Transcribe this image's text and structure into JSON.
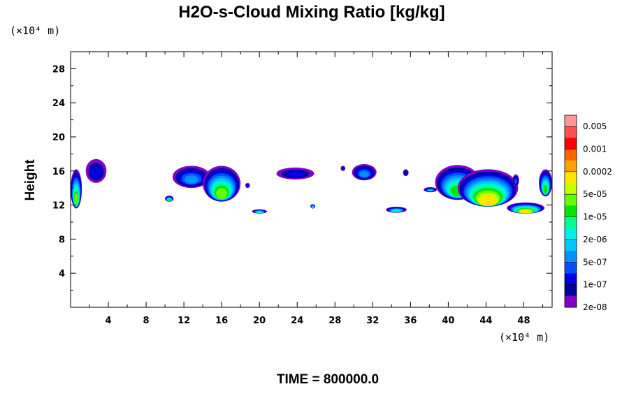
{
  "chart_data": {
    "type": "heatmap",
    "title": "H2O-s-Cloud Mixing Ratio [kg/kg]",
    "ylabel": "Height",
    "xlabel": "",
    "x_unit_note": "(×10⁴ m)",
    "y_unit_note": "(×10⁴ m)",
    "xlim": [
      0,
      51
    ],
    "ylim": [
      0,
      30
    ],
    "x_ticks": [
      4,
      8,
      12,
      16,
      20,
      24,
      28,
      32,
      36,
      40,
      44,
      48
    ],
    "y_ticks": [
      4,
      8,
      12,
      16,
      20,
      24,
      28
    ],
    "time_label": "TIME = 800000.0",
    "colorbar": {
      "colors": [
        "#ff9999",
        "#ff5050",
        "#ff0000",
        "#ff6400",
        "#ffa000",
        "#ffe600",
        "#c8ff00",
        "#64ff00",
        "#00e600",
        "#00ff8c",
        "#00f0e6",
        "#00c8ff",
        "#0090ff",
        "#0050ff",
        "#0000e6",
        "#0000a0",
        "#8200c8"
      ],
      "labels": [
        "0.005",
        "0.001",
        "0.0002",
        "5e-05",
        "1e-05",
        "2e-06",
        "5e-07",
        "1e-07",
        "2e-08"
      ]
    },
    "clouds": [
      {
        "x": [
          0,
          1.2
        ],
        "y": [
          11.6,
          16.2
        ],
        "peak": 9
      },
      {
        "x": [
          1.6,
          3.8
        ],
        "y": [
          14.6,
          17.4
        ],
        "peak": 2
      },
      {
        "x": [
          10.0,
          10.9
        ],
        "y": [
          12.4,
          13.1
        ],
        "peak": 8
      },
      {
        "x": [
          10.8,
          14.8
        ],
        "y": [
          14.0,
          16.6
        ],
        "peak": 4
      },
      {
        "x": [
          14.0,
          18.0
        ],
        "y": [
          12.4,
          16.6
        ],
        "peak": 9
      },
      {
        "x": [
          18.5,
          19.0
        ],
        "y": [
          14.0,
          14.6
        ],
        "peak": 2
      },
      {
        "x": [
          19.2,
          20.8
        ],
        "y": [
          11.0,
          11.5
        ],
        "peak": 7
      },
      {
        "x": [
          21.8,
          25.8
        ],
        "y": [
          15.0,
          16.4
        ],
        "peak": 2
      },
      {
        "x": [
          25.4,
          25.9
        ],
        "y": [
          11.6,
          12.1
        ],
        "peak": 7
      },
      {
        "x": [
          28.6,
          29.1
        ],
        "y": [
          16.0,
          16.6
        ],
        "peak": 2
      },
      {
        "x": [
          29.8,
          32.4
        ],
        "y": [
          14.9,
          16.8
        ],
        "peak": 4
      },
      {
        "x": [
          33.4,
          35.6
        ],
        "y": [
          11.1,
          11.8
        ],
        "peak": 7
      },
      {
        "x": [
          35.2,
          35.8
        ],
        "y": [
          15.4,
          16.2
        ],
        "peak": 2
      },
      {
        "x": [
          37.4,
          38.8
        ],
        "y": [
          13.5,
          14.1
        ],
        "peak": 5
      },
      {
        "x": [
          38.6,
          43.4
        ],
        "y": [
          12.6,
          16.7
        ],
        "peak": 8
      },
      {
        "x": [
          41.0,
          47.4
        ],
        "y": [
          11.8,
          16.2
        ],
        "peak": 11
      },
      {
        "x": [
          46.2,
          50.2
        ],
        "y": [
          11.0,
          12.3
        ],
        "peak": 11
      },
      {
        "x": [
          46.8,
          47.5
        ],
        "y": [
          14.2,
          15.6
        ],
        "peak": 3
      },
      {
        "x": [
          49.6,
          51.0
        ],
        "y": [
          13.0,
          16.2
        ],
        "peak": 8
      }
    ]
  }
}
